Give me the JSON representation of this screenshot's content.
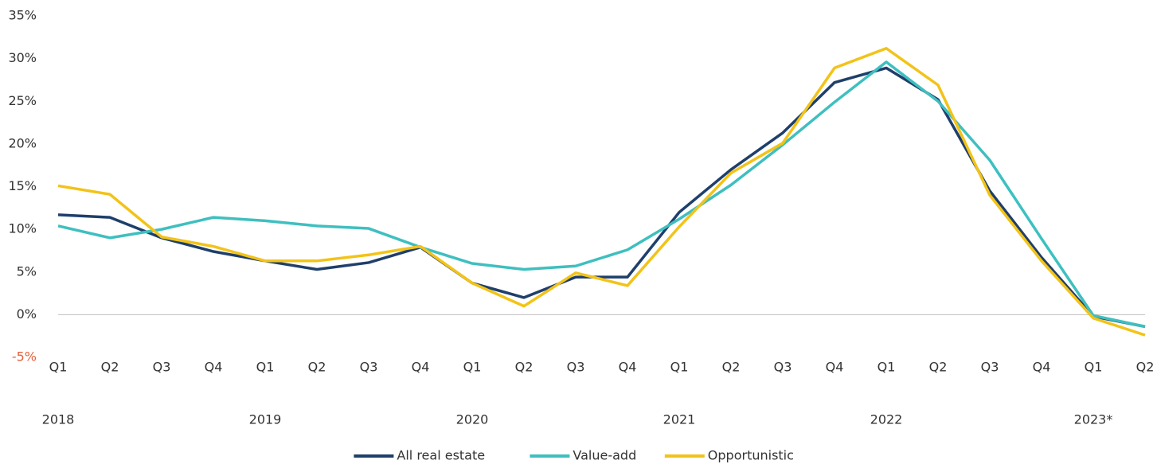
{
  "chart_data": {
    "type": "line",
    "categories": [
      "Q1",
      "Q2",
      "Q3",
      "Q4",
      "Q1",
      "Q2",
      "Q3",
      "Q4",
      "Q1",
      "Q2",
      "Q3",
      "Q4",
      "Q1",
      "Q2",
      "Q3",
      "Q4",
      "Q1",
      "Q2",
      "Q3",
      "Q4",
      "Q1",
      "Q2"
    ],
    "years": [
      "2018",
      null,
      null,
      null,
      "2019",
      null,
      null,
      null,
      "2020",
      null,
      null,
      null,
      "2021",
      null,
      null,
      null,
      "2022",
      null,
      null,
      null,
      "2023*",
      null
    ],
    "series": [
      {
        "name": "All real estate",
        "color": "#1f3f6b",
        "values": [
          11.7,
          11.4,
          9.0,
          7.4,
          6.3,
          5.3,
          6.1,
          7.9,
          3.7,
          2.0,
          4.4,
          4.4,
          12.0,
          17.0,
          21.3,
          27.2,
          28.9,
          25.2,
          14.5,
          6.7,
          -0.2,
          -1.4
        ]
      },
      {
        "name": "Value-add",
        "color": "#3fbfbf",
        "values": [
          10.4,
          9.0,
          10.0,
          11.4,
          11.0,
          10.4,
          10.1,
          7.9,
          6.0,
          5.3,
          5.7,
          7.6,
          11.2,
          15.2,
          19.9,
          24.9,
          29.6,
          25.0,
          18.1,
          8.9,
          -0.1,
          -1.4
        ]
      },
      {
        "name": "Opportunistic",
        "color": "#f2c318",
        "values": [
          15.1,
          14.1,
          9.1,
          8.0,
          6.3,
          6.3,
          7.0,
          8.0,
          3.7,
          1.0,
          4.9,
          3.4,
          10.3,
          16.6,
          20.1,
          28.9,
          31.2,
          26.9,
          14.0,
          6.3,
          -0.4,
          -2.4
        ]
      }
    ],
    "ylim": [
      -5,
      35
    ],
    "yticks": [
      {
        "value": 35,
        "label": "35%"
      },
      {
        "value": 30,
        "label": "30%"
      },
      {
        "value": 25,
        "label": "25%"
      },
      {
        "value": 20,
        "label": "20%"
      },
      {
        "value": 15,
        "label": "15%"
      },
      {
        "value": 10,
        "label": "10%"
      },
      {
        "value": 5,
        "label": "5%"
      },
      {
        "value": 0,
        "label": "0%"
      },
      {
        "value": -5,
        "label": "-5%"
      }
    ],
    "negative_label_color": "#e8603c",
    "grid": false,
    "legend": "bottom"
  }
}
